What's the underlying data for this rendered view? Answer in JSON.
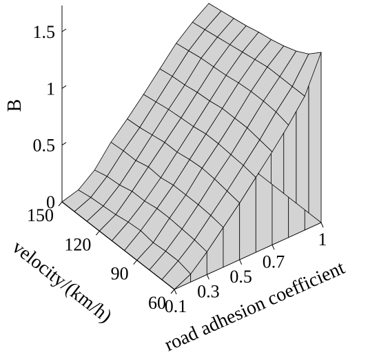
{
  "chart_data": {
    "type": "surface",
    "zlabel": "B",
    "xlabel": "road adhesion coefficient",
    "ylabel": "velocity/(km/h)",
    "x_ticks": [
      "0.1",
      "0.3",
      "0.5",
      "0.7",
      "1"
    ],
    "y_ticks": [
      "60",
      "90",
      "120",
      "150"
    ],
    "z_ticks": [
      "0",
      "0.5",
      "1",
      "1.5"
    ],
    "x_range": [
      0.1,
      1.0
    ],
    "y_range": [
      60,
      150
    ],
    "z_range": [
      0,
      1.5
    ],
    "x": [
      0.1,
      0.2,
      0.3,
      0.4,
      0.5,
      0.6,
      0.7,
      0.8,
      0.9,
      1.0
    ],
    "y": [
      60,
      70,
      80,
      90,
      100,
      110,
      120,
      130,
      140,
      150
    ],
    "z": [
      [
        0.0,
        0.07,
        0.2,
        0.35,
        0.5,
        0.66,
        0.82,
        0.99,
        1.18,
        1.5
      ],
      [
        0.0,
        0.1,
        0.22,
        0.37,
        0.52,
        0.68,
        0.84,
        1.02,
        1.18,
        1.4
      ],
      [
        0.0,
        0.1,
        0.23,
        0.38,
        0.54,
        0.69,
        0.86,
        1.03,
        1.18,
        1.34
      ],
      [
        0.0,
        0.09,
        0.24,
        0.38,
        0.55,
        0.7,
        0.86,
        1.03,
        1.18,
        1.3
      ],
      [
        0.0,
        0.11,
        0.24,
        0.38,
        0.54,
        0.7,
        0.86,
        1.02,
        1.16,
        1.27
      ],
      [
        0.0,
        0.1,
        0.22,
        0.36,
        0.52,
        0.68,
        0.84,
        1.0,
        1.14,
        1.25
      ],
      [
        0.0,
        0.08,
        0.22,
        0.37,
        0.52,
        0.67,
        0.83,
        0.99,
        1.12,
        1.22
      ],
      [
        0.0,
        0.07,
        0.19,
        0.34,
        0.5,
        0.66,
        0.81,
        0.98,
        1.1,
        1.2
      ],
      [
        0.0,
        0.06,
        0.18,
        0.34,
        0.48,
        0.64,
        0.8,
        0.96,
        1.08,
        1.18
      ],
      [
        0.0,
        0.04,
        0.15,
        0.33,
        0.47,
        0.62,
        0.78,
        0.94,
        1.06,
        1.16
      ]
    ],
    "grid": false,
    "surface_color": "#d3d3d3",
    "edge_color": "#000000"
  }
}
